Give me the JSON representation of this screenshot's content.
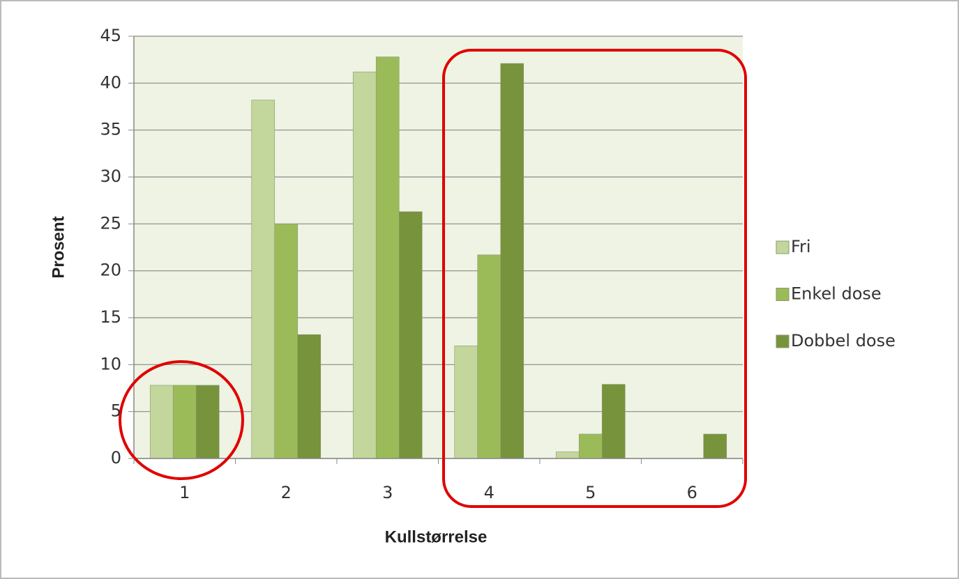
{
  "chart_data": {
    "type": "bar",
    "x_label": "Kullstørrelse",
    "y_label": "Prosent",
    "categories": [
      "1",
      "2",
      "3",
      "4",
      "5",
      "6"
    ],
    "series": [
      {
        "name": "Fri",
        "color": "#c3d69b",
        "values": [
          7.8,
          38.2,
          41.2,
          12,
          0.7,
          0
        ]
      },
      {
        "name": "Enkel dose",
        "color": "#9bbb59",
        "values": [
          7.8,
          25,
          42.8,
          21.7,
          2.6,
          0
        ]
      },
      {
        "name": "Dobbel dose",
        "color": "#77933c",
        "values": [
          7.8,
          13.2,
          26.3,
          42.1,
          7.9,
          2.6
        ]
      }
    ],
    "ylim": [
      0,
      45
    ],
    "yticks": [
      0,
      5,
      10,
      15,
      20,
      25,
      30,
      35,
      40,
      45
    ],
    "grid": true,
    "legend": "right"
  }
}
